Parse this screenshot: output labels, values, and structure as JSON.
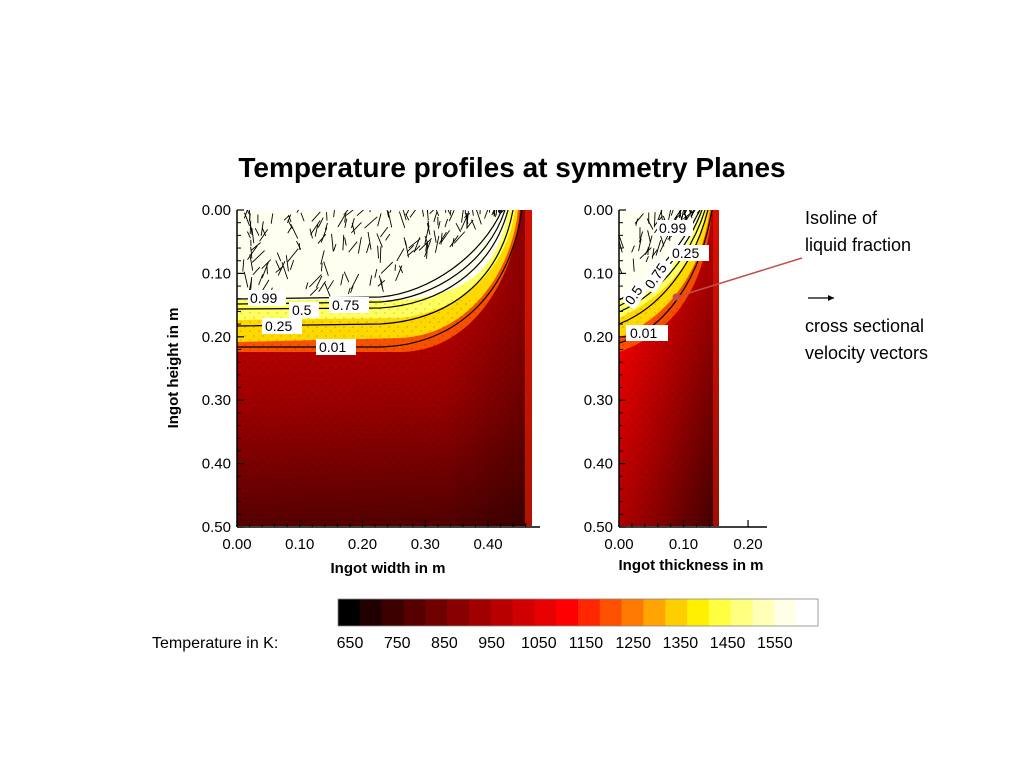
{
  "title": "Temperature profiles at symmetry Planes",
  "chart_data": [
    {
      "type": "heatmap",
      "panel": "width",
      "xlabel": "Ingot width in m",
      "ylabel": "Ingot height in m",
      "xlim": [
        0,
        0.47
      ],
      "ylim": [
        0.5,
        0.0
      ],
      "xticks": [
        "0.00",
        "0.10",
        "0.20",
        "0.30",
        "0.40"
      ],
      "yticks": [
        "0.00",
        "0.10",
        "0.20",
        "0.30",
        "0.40",
        "0.50"
      ],
      "isolines": [
        {
          "label": "0.99",
          "value": 0.99,
          "depth_at_center": 0.14
        },
        {
          "label": "0.75",
          "value": 0.75,
          "depth_at_center": 0.15
        },
        {
          "label": "0.5",
          "value": 0.5,
          "depth_at_center": 0.155
        },
        {
          "label": "0.25",
          "value": 0.25,
          "depth_at_center": 0.175
        },
        {
          "label": "0.01",
          "value": 0.01,
          "depth_at_center": 0.215
        }
      ]
    },
    {
      "type": "heatmap",
      "panel": "thickness",
      "xlabel": "Ingot thickness in m",
      "ylabel": "",
      "xlim": [
        0,
        0.23
      ],
      "ylim": [
        0.5,
        0.0
      ],
      "domain_width": 0.155,
      "xticks": [
        "0.00",
        "0.10",
        "0.20"
      ],
      "yticks": [
        "0.00",
        "0.10",
        "0.20",
        "0.30",
        "0.40",
        "0.50"
      ],
      "isolines": [
        {
          "label": "0.99",
          "value": 0.99
        },
        {
          "label": "0.75",
          "value": 0.75
        },
        {
          "label": "0.5",
          "value": 0.5
        },
        {
          "label": "0.25",
          "value": 0.25
        },
        {
          "label": "0.01",
          "value": 0.01
        }
      ]
    }
  ],
  "colorbar": {
    "label": "Temperature in K:",
    "ticks": [
      "650",
      "750",
      "850",
      "950",
      "1050",
      "1150",
      "1250",
      "1350",
      "1450",
      "1550"
    ],
    "colors": [
      "#000000",
      "#200000",
      "#3c0000",
      "#560000",
      "#6e0000",
      "#880000",
      "#a00000",
      "#b80000",
      "#d00000",
      "#e60000",
      "#ff0000",
      "#ff2600",
      "#ff5000",
      "#ff7a00",
      "#ffa400",
      "#ffce00",
      "#fff000",
      "#ffff40",
      "#ffff80",
      "#ffffb8",
      "#ffffe8",
      "#ffffff"
    ]
  },
  "annotations": {
    "isoline_note_1": "Isoline of",
    "isoline_note_2": "liquid fraction",
    "vector_note_1": "cross sectional",
    "vector_note_2": "velocity vectors"
  }
}
